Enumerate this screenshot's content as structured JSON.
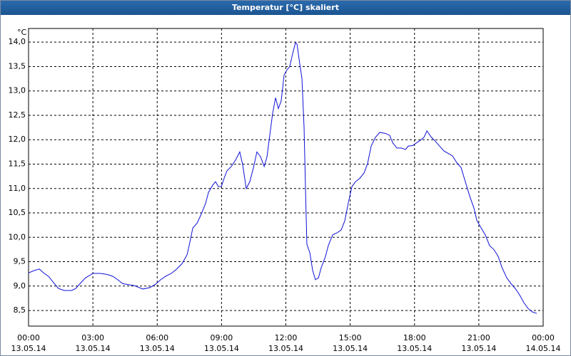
{
  "window_title": "Temperatur [°C] skaliert",
  "chart_data": {
    "type": "line",
    "y_unit": "°C",
    "grid": true,
    "xlim": [
      0,
      24
    ],
    "ylim": [
      8.18,
      14.28
    ],
    "xticks": [
      {
        "value": 0,
        "label": "00:00"
      },
      {
        "value": 3,
        "label": "03:00"
      },
      {
        "value": 6,
        "label": "06:00"
      },
      {
        "value": 9,
        "label": "09:00"
      },
      {
        "value": 12,
        "label": "12:00"
      },
      {
        "value": 15,
        "label": "15:00"
      },
      {
        "value": 18,
        "label": "18:00"
      },
      {
        "value": 21,
        "label": "21:00"
      },
      {
        "value": 24,
        "label": "00:00"
      }
    ],
    "xtick_dates": [
      "13.05.14",
      "13.05.14",
      "13.05.14",
      "13.05.14",
      "13.05.14",
      "13.05.14",
      "13.05.14",
      "13.05.14",
      "14.05.14"
    ],
    "yticks": [
      {
        "value": 8.5,
        "label": "8,5"
      },
      {
        "value": 9,
        "label": "9,0"
      },
      {
        "value": 9.5,
        "label": "9,5"
      },
      {
        "value": 10,
        "label": "10,0"
      },
      {
        "value": 10.5,
        "label": "10,5"
      },
      {
        "value": 11,
        "label": "11,0"
      },
      {
        "value": 11.5,
        "label": "11,5"
      },
      {
        "value": 12,
        "label": "12,0"
      },
      {
        "value": 12.5,
        "label": "12,5"
      },
      {
        "value": 13,
        "label": "13,0"
      },
      {
        "value": 13.5,
        "label": "13,5"
      },
      {
        "value": 14,
        "label": "14,0"
      }
    ],
    "series": [
      {
        "color": "#1010d8",
        "x": [
          0,
          0.27,
          0.5,
          0.73,
          0.93,
          1.17,
          1.4,
          1.66,
          2,
          2.2,
          2.4,
          2.66,
          3,
          3.33,
          3.66,
          3.93,
          4.16,
          4.39,
          4.66,
          4.93,
          5.16,
          5.33,
          5.66,
          5.93,
          6.16,
          6.39,
          6.66,
          6.86,
          7.16,
          7.39,
          7.49,
          7.66,
          7.86,
          8.06,
          8.26,
          8.39,
          8.59,
          8.72,
          8.85,
          8.99,
          9.12,
          9.25,
          9.45,
          9.65,
          9.85,
          9.99,
          10.15,
          10.32,
          10.49,
          10.65,
          10.82,
          10.99,
          11.12,
          11.25,
          11.38,
          11.52,
          11.65,
          11.78,
          11.92,
          12.05,
          12.18,
          12.32,
          12.45,
          12.52,
          12.65,
          12.75,
          12.85,
          12.92,
          12.98,
          13.12,
          13.25,
          13.38,
          13.52,
          13.65,
          13.85,
          13.98,
          14.18,
          14.38,
          14.58,
          14.75,
          14.91,
          15.08,
          15.25,
          15.45,
          15.65,
          15.81,
          15.98,
          16.18,
          16.38,
          16.64,
          16.84,
          16.98,
          17.18,
          17.38,
          17.58,
          17.71,
          17.91,
          18.11,
          18.31,
          18.44,
          18.58,
          18.77,
          18.97,
          19.17,
          19.37,
          19.57,
          19.77,
          19.97,
          20.17,
          20.37,
          20.57,
          20.77,
          20.91,
          21.11,
          21.3,
          21.5,
          21.7,
          21.9,
          22.07,
          22.3,
          22.5,
          22.7,
          22.9,
          23.1,
          23.3,
          23.5,
          23.7
        ],
        "values": [
          9.27,
          9.32,
          9.35,
          9.26,
          9.2,
          9.07,
          8.95,
          8.91,
          8.91,
          8.95,
          9.05,
          9.17,
          9.26,
          9.26,
          9.24,
          9.2,
          9.13,
          9.05,
          9.03,
          9.01,
          8.97,
          8.94,
          8.97,
          9.04,
          9.13,
          9.2,
          9.26,
          9.33,
          9.46,
          9.64,
          9.83,
          10.19,
          10.29,
          10.48,
          10.7,
          10.92,
          11.07,
          11.14,
          11.04,
          11.04,
          11.21,
          11.36,
          11.45,
          11.58,
          11.75,
          11.48,
          11,
          11.14,
          11.43,
          11.75,
          11.65,
          11.45,
          11.65,
          12.09,
          12.53,
          12.86,
          12.64,
          12.79,
          13.33,
          13.43,
          13.5,
          13.77,
          13.99,
          13.96,
          13.55,
          13.26,
          12.24,
          10.92,
          9.86,
          9.68,
          9.32,
          9.13,
          9.17,
          9.38,
          9.61,
          9.83,
          10.05,
          10.09,
          10.15,
          10.34,
          10.7,
          11.04,
          11.14,
          11.21,
          11.32,
          11.51,
          11.87,
          12.05,
          12.15,
          12.13,
          12.09,
          11.94,
          11.83,
          11.83,
          11.8,
          11.87,
          11.88,
          11.94,
          12,
          12.05,
          12.18,
          12.06,
          11.97,
          11.87,
          11.77,
          11.72,
          11.67,
          11.53,
          11.43,
          11.14,
          10.85,
          10.6,
          10.34,
          10.19,
          10.05,
          9.83,
          9.75,
          9.61,
          9.39,
          9.17,
          9.05,
          8.95,
          8.82,
          8.66,
          8.54,
          8.47,
          8.44
        ]
      }
    ]
  }
}
